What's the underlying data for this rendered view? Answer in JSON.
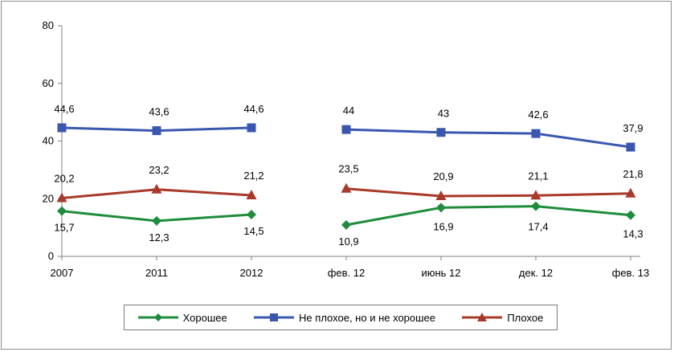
{
  "chart_data": {
    "type": "line",
    "categories": [
      "2007",
      "2011",
      "2012",
      "фев. 12",
      "июнь 12",
      "дек. 12",
      "фев. 13"
    ],
    "segments": [
      [
        0,
        1,
        2
      ],
      [
        3,
        4,
        5,
        6
      ]
    ],
    "ylim": [
      0,
      80
    ],
    "yticks": [
      "0",
      "20",
      "40",
      "60",
      "80"
    ],
    "series": [
      {
        "name": "Хорошее",
        "color": "#1e8c3c",
        "marker": "diamond",
        "values": [
          15.7,
          12.3,
          14.5,
          10.9,
          16.9,
          17.4,
          14.3
        ],
        "labels": [
          "15,7",
          "12,3",
          "14,5",
          "10,9",
          "16,9",
          "17,4",
          "14,3"
        ]
      },
      {
        "name": "Не плохое, но и не хорошее",
        "color": "#3a57b0",
        "marker": "square",
        "values": [
          44.6,
          43.6,
          44.6,
          44,
          43,
          42.6,
          37.9
        ],
        "labels": [
          "44,6",
          "43,6",
          "44,6",
          "44",
          "43",
          "42,6",
          "37,9"
        ]
      },
      {
        "name": "Плохое",
        "color": "#a83a2a",
        "marker": "triangle",
        "values": [
          20.2,
          23.2,
          21.2,
          23.5,
          20.9,
          21.1,
          21.8
        ],
        "labels": [
          "20,2",
          "23,2",
          "21,2",
          "23,5",
          "20,9",
          "21,1",
          "21,8"
        ]
      }
    ],
    "legend": "bottom"
  }
}
